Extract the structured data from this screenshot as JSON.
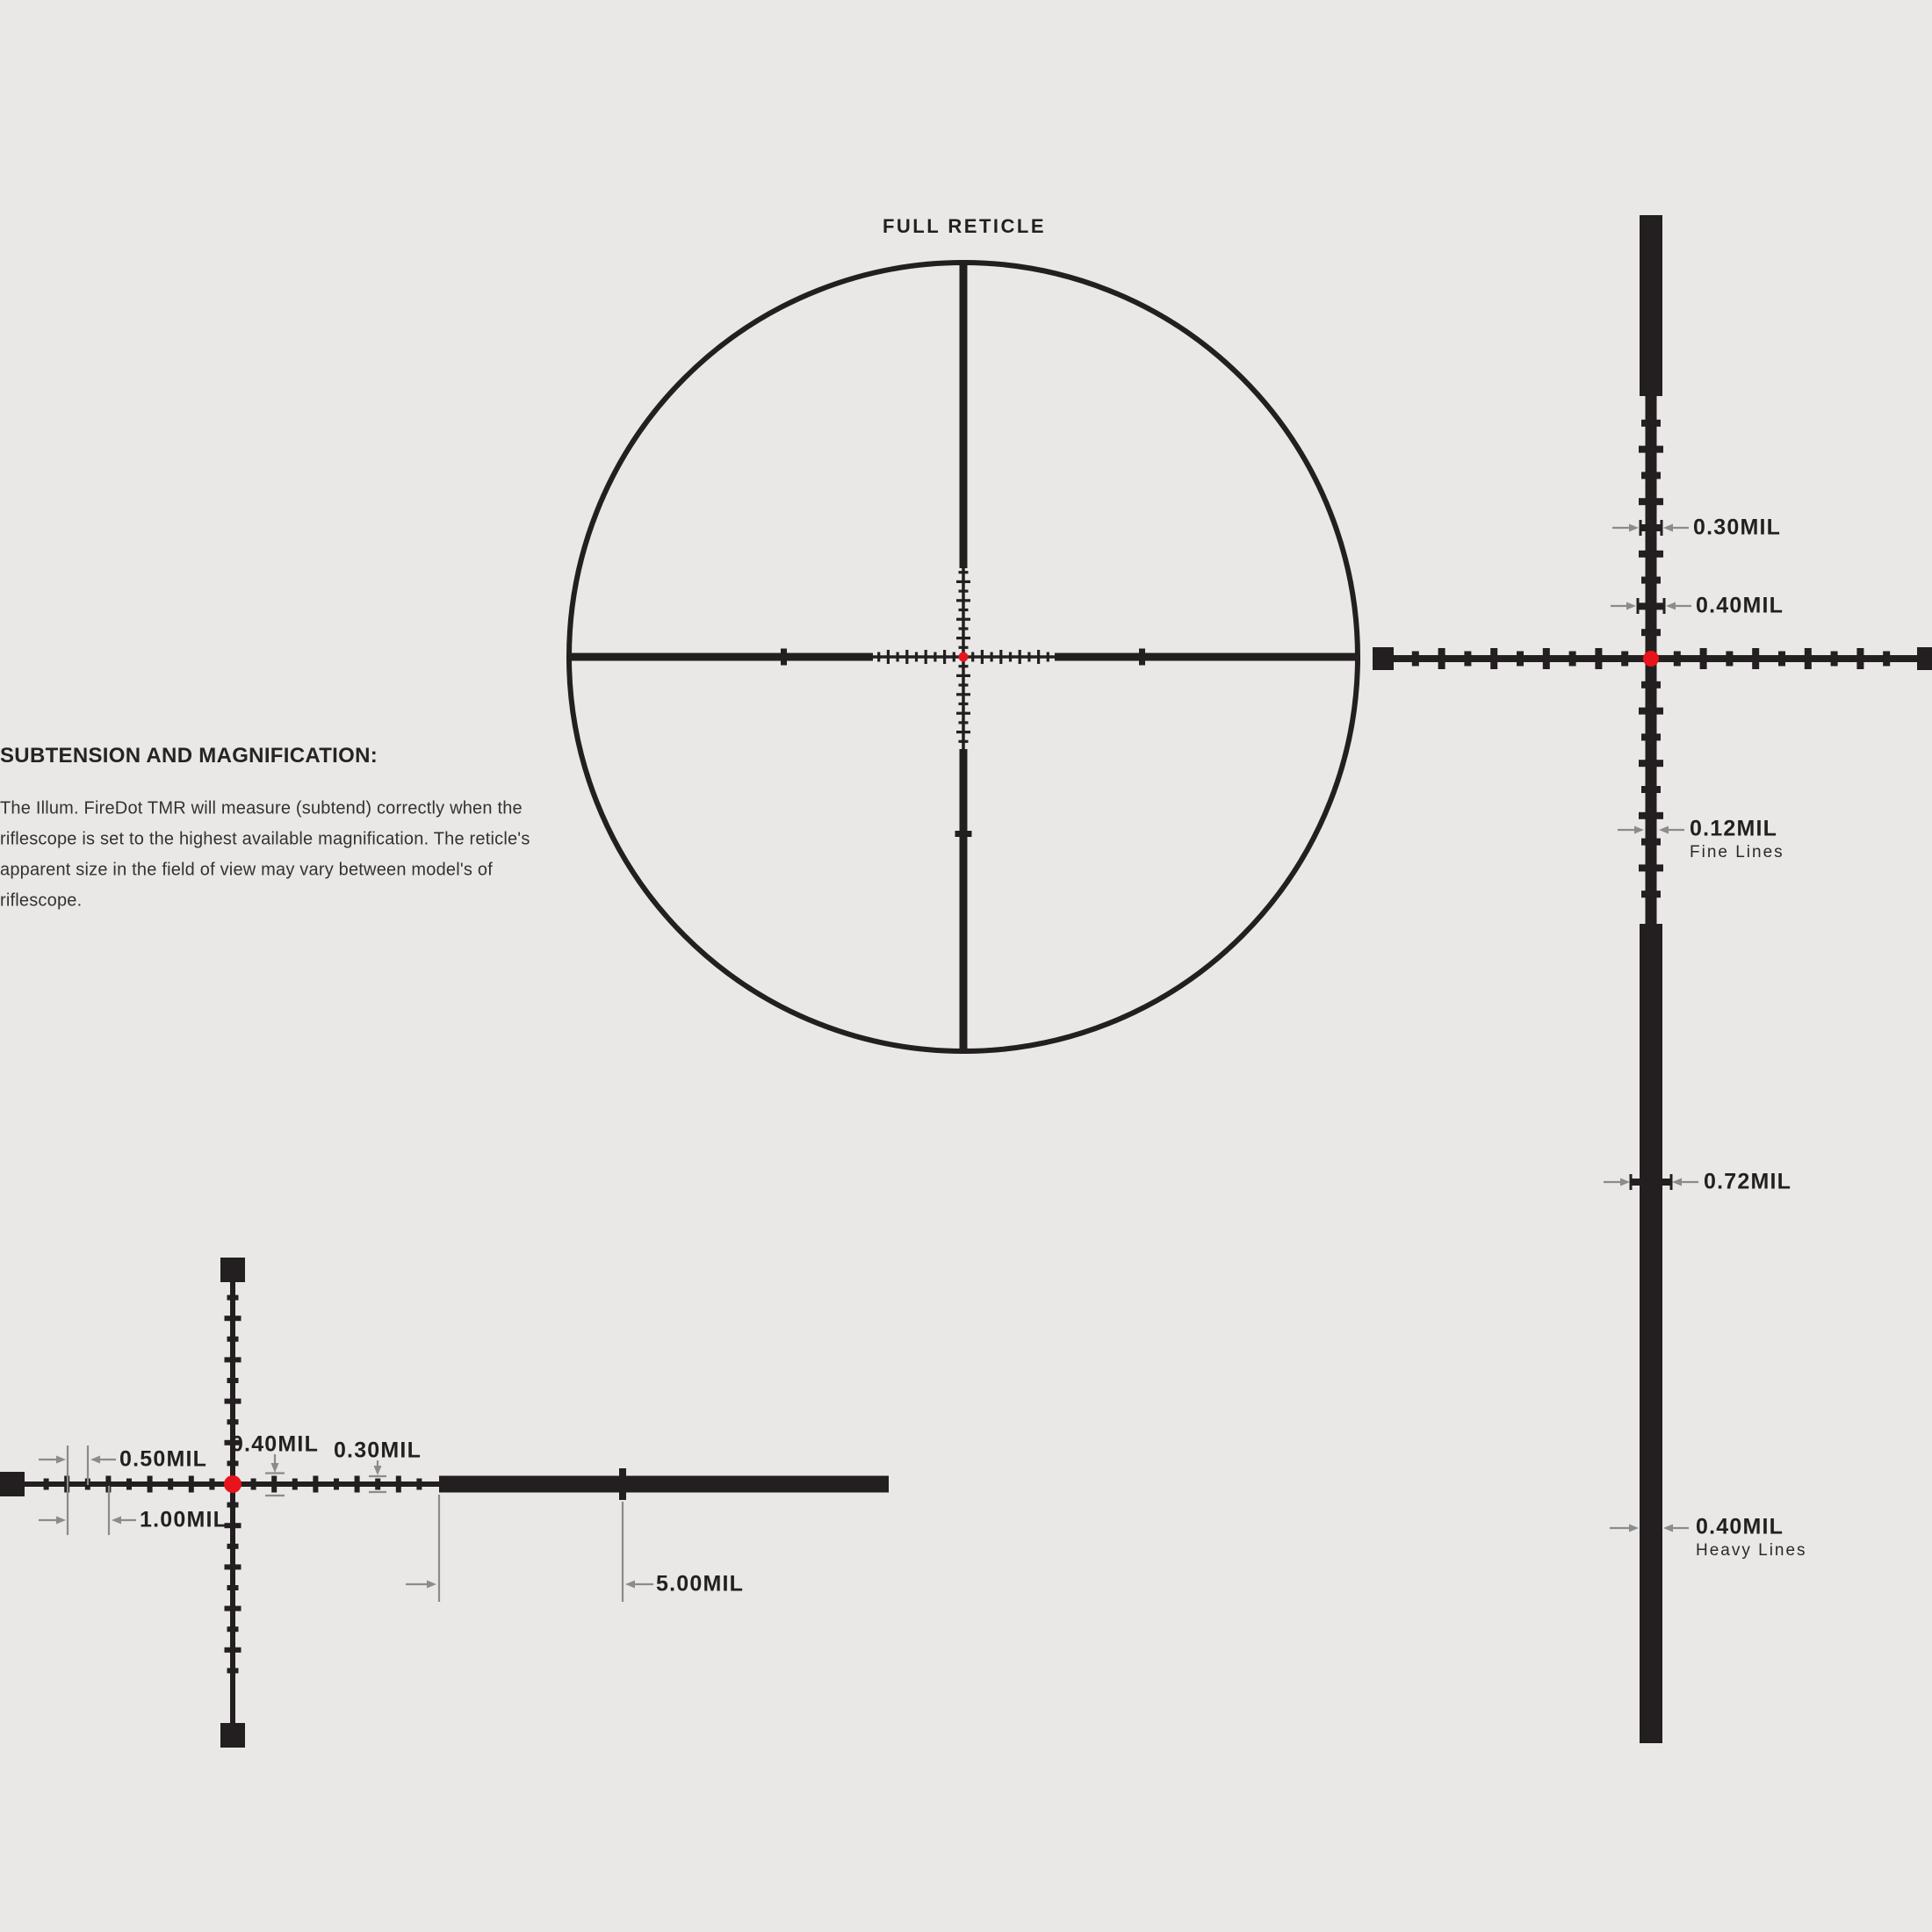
{
  "colors": {
    "background": "#e9e8e6",
    "ink": "#231f20",
    "red": "#e8141b",
    "gray": "#8b8b8b"
  },
  "labels": {
    "full_title": "FULL RETICLE",
    "subtension_heading": "SUBTENSION AND MAGNIFICATION:",
    "body_lines": [
      "The Illum. FireDot TMR will measure (subtend) correctly when the",
      "riflescope is set to the highest available magnification. The reticle's",
      "apparent size in the field of view may vary between model's of",
      "riflescope."
    ],
    "right_detail": {
      "tick_short": "0.30MIL",
      "tick_long": "0.40MIL",
      "fine": "0.12MIL",
      "fine_sub": "Fine Lines",
      "bar_tick": "0.72MIL",
      "heavy": "0.40MIL",
      "heavy_sub": "Heavy Lines"
    },
    "bottom_detail": {
      "half_mil": "0.50MIL",
      "one_mil": "1.00MIL",
      "tick_long": "0.40MIL",
      "tick_short": "0.30MIL",
      "five_mil": "5.00MIL"
    }
  }
}
